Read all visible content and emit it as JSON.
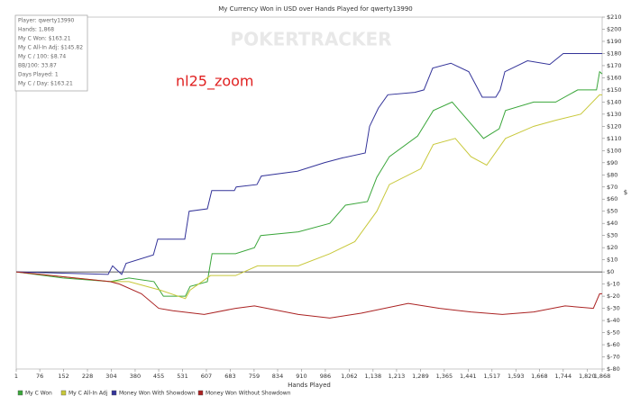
{
  "chart_data": {
    "type": "line",
    "title": "My Currency Won in USD over Hands Played for qwerty13990",
    "x_label": "Hands Played",
    "y_label": "$",
    "annotation": "nl25_zoom",
    "watermark": "POKERTRACKER",
    "stats_box": [
      "Player: qwerty13990",
      "Hands: 1,868",
      "My C Won: $163.21",
      "My C All-In Adj: $145.82",
      "My C / 100: $8.74",
      "BB/100: 33.87",
      "Days Played: 1",
      "My C / Day: $163.21"
    ],
    "legend": "bottom-left",
    "xlim": [
      1,
      1868
    ],
    "xticks": [
      1,
      76,
      152,
      228,
      304,
      380,
      455,
      531,
      607,
      683,
      759,
      834,
      910,
      986,
      {
        "value": 1062,
        "label": "1,062"
      },
      {
        "value": 1138,
        "label": "1,138"
      },
      {
        "value": 1213,
        "label": "1,213"
      },
      {
        "value": 1289,
        "label": "1,289"
      },
      {
        "value": 1365,
        "label": "1,365"
      },
      {
        "value": 1441,
        "label": "1,441"
      },
      {
        "value": 1517,
        "label": "1,517"
      },
      {
        "value": 1593,
        "label": "1,593"
      },
      {
        "value": 1668,
        "label": "1,668"
      },
      {
        "value": 1744,
        "label": "1,744"
      },
      {
        "value": 1820,
        "label": "1,820"
      },
      {
        "value": 1868,
        "label": "1,868"
      }
    ],
    "ylim": [
      -80,
      210
    ],
    "yticks": [
      {
        "value": -80,
        "label": "$-80"
      },
      {
        "value": -70,
        "label": "$-70"
      },
      {
        "value": -60,
        "label": "$-60"
      },
      {
        "value": -50,
        "label": "$-50"
      },
      {
        "value": -40,
        "label": "$-40"
      },
      {
        "value": -30,
        "label": "$-30"
      },
      {
        "value": -20,
        "label": "$-20"
      },
      {
        "value": -10,
        "label": "$-10"
      },
      {
        "value": 0,
        "label": "$0"
      },
      {
        "value": 10,
        "label": "$10"
      },
      {
        "value": 20,
        "label": "$20"
      },
      {
        "value": 30,
        "label": "$30"
      },
      {
        "value": 40,
        "label": "$40"
      },
      {
        "value": 50,
        "label": "$50"
      },
      {
        "value": 60,
        "label": "$60"
      },
      {
        "value": 70,
        "label": "$70"
      },
      {
        "value": 80,
        "label": "$80"
      },
      {
        "value": 90,
        "label": "$90"
      },
      {
        "value": 100,
        "label": "$100"
      },
      {
        "value": 110,
        "label": "$110"
      },
      {
        "value": 120,
        "label": "$120"
      },
      {
        "value": 130,
        "label": "$130"
      },
      {
        "value": 140,
        "label": "$140"
      },
      {
        "value": 150,
        "label": "$150"
      },
      {
        "value": 160,
        "label": "$160"
      },
      {
        "value": 170,
        "label": "$170"
      },
      {
        "value": 180,
        "label": "$180"
      },
      {
        "value": 190,
        "label": "$190"
      },
      {
        "value": 200,
        "label": "$200"
      },
      {
        "value": 210,
        "label": "$210"
      }
    ],
    "series": [
      {
        "name": "My C Won",
        "color": "#3aa63a",
        "x": [
          1,
          150,
          300,
          360,
          440,
          470,
          540,
          555,
          610,
          625,
          700,
          760,
          780,
          900,
          1000,
          1050,
          1120,
          1150,
          1190,
          1280,
          1330,
          1390,
          1440,
          1490,
          1540,
          1560,
          1650,
          1720,
          1790,
          1850,
          1860,
          1868
        ],
        "values": [
          0,
          -5,
          -8,
          -5,
          -8,
          -20,
          -20,
          -12,
          -8,
          15,
          15,
          20,
          30,
          33,
          40,
          55,
          58,
          78,
          95,
          112,
          133,
          140,
          125,
          110,
          118,
          133,
          140,
          140,
          150,
          150,
          165,
          163.21
        ]
      },
      {
        "name": "My C All-In Adj",
        "color": "#c8c83a",
        "x": [
          1,
          300,
          360,
          460,
          540,
          555,
          620,
          700,
          770,
          900,
          1000,
          1080,
          1150,
          1190,
          1290,
          1330,
          1400,
          1450,
          1500,
          1560,
          1650,
          1720,
          1800,
          1860,
          1868
        ],
        "values": [
          0,
          -8,
          -8,
          -15,
          -22,
          -15,
          -3,
          -3,
          5,
          5,
          15,
          25,
          50,
          72,
          85,
          105,
          110,
          95,
          88,
          110,
          120,
          125,
          130,
          146,
          145.82
        ]
      },
      {
        "name": "Money Won With Showdown",
        "color": "#333399",
        "x": [
          1,
          294,
          308,
          337,
          351,
          438,
          452,
          538,
          552,
          610,
          624,
          696,
          702,
          768,
          782,
          897,
          983,
          1041,
          1113,
          1127,
          1155,
          1185,
          1271,
          1300,
          1328,
          1386,
          1443,
          1486,
          1529,
          1543,
          1558,
          1630,
          1701,
          1744,
          1868
        ],
        "values": [
          0,
          -2,
          5,
          -2,
          7,
          14,
          27,
          27,
          50,
          52,
          67,
          67,
          70,
          72,
          79,
          83,
          90,
          94,
          98,
          120,
          135,
          146,
          148,
          150,
          168,
          172,
          165,
          144,
          144,
          150,
          165,
          174,
          171,
          180,
          180
        ]
      },
      {
        "name": "Money Won Without Showdown",
        "color": "#aa2222",
        "x": [
          1,
          300,
          330,
          400,
          455,
          500,
          600,
          700,
          760,
          900,
          1000,
          1100,
          1250,
          1350,
          1450,
          1550,
          1650,
          1750,
          1840,
          1860,
          1868
        ],
        "values": [
          0,
          -8,
          -10,
          -18,
          -30,
          -32,
          -35,
          -30,
          -28,
          -35,
          -38,
          -34,
          -26,
          -30,
          -33,
          -35,
          -33,
          -28,
          -30,
          -18,
          -18
        ]
      }
    ]
  }
}
